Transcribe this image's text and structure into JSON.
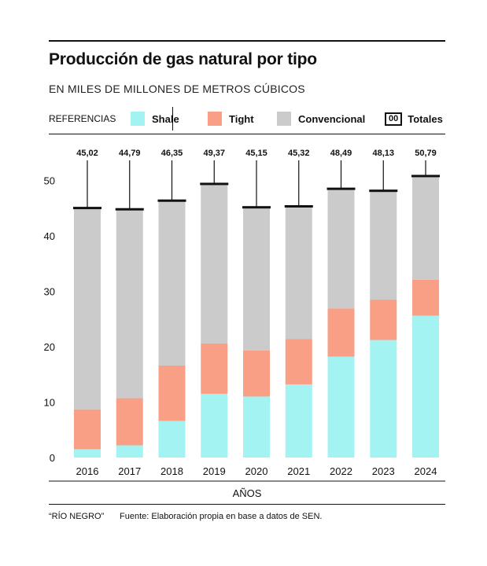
{
  "title": "Producción de gas natural por tipo",
  "subtitle": "EN MILES DE MILLONES DE METROS CÚBICOS",
  "legend": {
    "label": "REFERENCIAS",
    "items": [
      {
        "name": "Shale",
        "color": "#a3f3f3"
      },
      {
        "name": "Tight",
        "color": "#f99f86"
      },
      {
        "name": "Convencional",
        "color": "#cbcbcb"
      }
    ],
    "totals_box": "00",
    "totals_label": "Totales"
  },
  "footer": {
    "source_name": "“RÍO NEGRO”",
    "source_text": "Fuente: Elaboración propia en base a datos de SEN."
  },
  "chart_data": {
    "type": "bar",
    "stacked": true,
    "xlabel": "AÑOS",
    "ylabel": "",
    "ylim": [
      0,
      52
    ],
    "yticks": [
      0,
      10,
      20,
      30,
      40,
      50
    ],
    "grid": false,
    "categories": [
      "2016",
      "2017",
      "2018",
      "2019",
      "2020",
      "2021",
      "2022",
      "2023",
      "2024"
    ],
    "series": [
      {
        "name": "Shale",
        "color": "#a3f3f3",
        "values": [
          1.5,
          2.2,
          6.6,
          11.5,
          11.0,
          13.2,
          18.2,
          21.2,
          25.6
        ]
      },
      {
        "name": "Tight",
        "color": "#f99f86",
        "values": [
          7.2,
          8.5,
          10.0,
          9.1,
          8.3,
          8.2,
          8.7,
          7.3,
          6.5
        ]
      },
      {
        "name": "Convencional",
        "color": "#cbcbcb",
        "values": [
          36.32,
          34.09,
          29.75,
          28.77,
          25.85,
          23.92,
          21.59,
          19.63,
          18.69
        ]
      }
    ],
    "totals": [
      45.02,
      44.79,
      46.35,
      49.37,
      45.15,
      45.32,
      48.49,
      48.13,
      50.79
    ],
    "total_labels": [
      "45,02",
      "44,79",
      "46,35",
      "49,37",
      "45,15",
      "45,32",
      "48,49",
      "48,13",
      "50,79"
    ]
  }
}
